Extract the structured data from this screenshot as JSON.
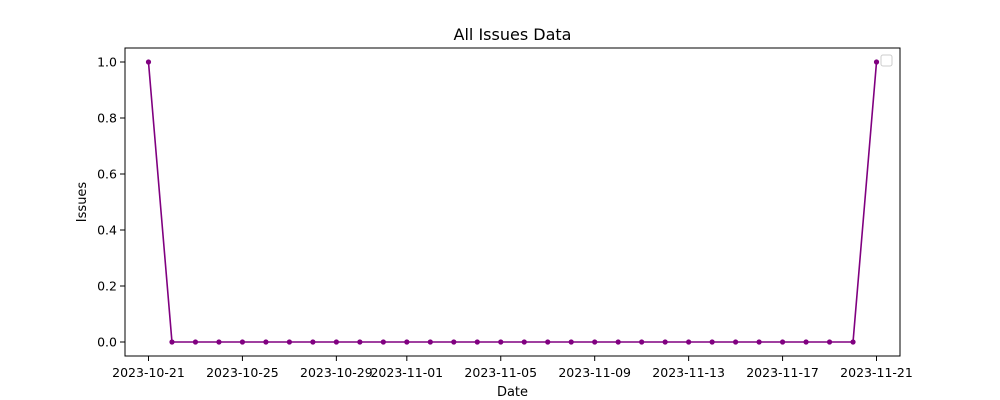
{
  "chart_data": {
    "type": "line",
    "title": "All Issues Data",
    "xlabel": "Date",
    "ylabel": "Issues",
    "x": [
      "2023-10-21",
      "2023-10-22",
      "2023-10-23",
      "2023-10-24",
      "2023-10-25",
      "2023-10-26",
      "2023-10-27",
      "2023-10-28",
      "2023-10-29",
      "2023-10-30",
      "2023-10-31",
      "2023-11-01",
      "2023-11-02",
      "2023-11-03",
      "2023-11-04",
      "2023-11-05",
      "2023-11-06",
      "2023-11-07",
      "2023-11-08",
      "2023-11-09",
      "2023-11-10",
      "2023-11-11",
      "2023-11-12",
      "2023-11-13",
      "2023-11-14",
      "2023-11-15",
      "2023-11-16",
      "2023-11-17",
      "2023-11-18",
      "2023-11-19",
      "2023-11-20",
      "2023-11-21"
    ],
    "series": [
      {
        "color": "#800080",
        "values": [
          1,
          0,
          0,
          0,
          0,
          0,
          0,
          0,
          0,
          0,
          0,
          0,
          0,
          0,
          0,
          0,
          0,
          0,
          0,
          0,
          0,
          0,
          0,
          0,
          0,
          0,
          0,
          0,
          0,
          0,
          0,
          1
        ]
      }
    ],
    "xticks": [
      "2023-10-21",
      "2023-10-25",
      "2023-10-29",
      "2023-11-01",
      "2023-11-05",
      "2023-11-09",
      "2023-11-13",
      "2023-11-17",
      "2023-11-21"
    ],
    "yticks": [
      "0.0",
      "0.2",
      "0.4",
      "0.6",
      "0.8",
      "1.0"
    ],
    "ylim": [
      -0.05,
      1.05
    ],
    "xlim": [
      "2023-10-20",
      "2023-11-22"
    ],
    "grid": false,
    "legend": "top-right"
  }
}
